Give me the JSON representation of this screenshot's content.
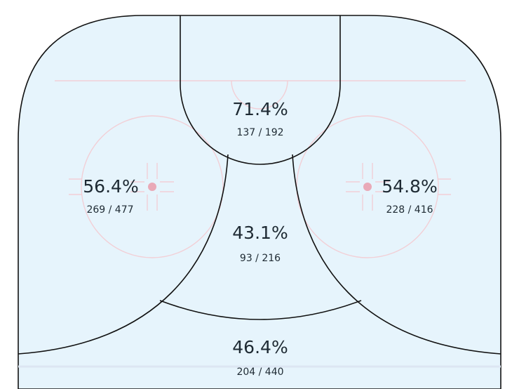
{
  "chart_data": {
    "type": "heatmap",
    "title": "",
    "zones": [
      {
        "id": "slot-top",
        "pct": "71.4%",
        "made": 137,
        "att": 192,
        "count_label": "137 / 192"
      },
      {
        "id": "left-circle",
        "pct": "56.4%",
        "made": 269,
        "att": 477,
        "count_label": "269 / 477"
      },
      {
        "id": "right-circle",
        "pct": "54.8%",
        "made": 228,
        "att": 416,
        "count_label": "228 / 416"
      },
      {
        "id": "center",
        "pct": "43.1%",
        "made": 93,
        "att": 216,
        "count_label": "93 / 216"
      },
      {
        "id": "point",
        "pct": "46.4%",
        "made": 204,
        "att": 440,
        "count_label": "204 / 440"
      }
    ]
  },
  "colors": {
    "ice": "#e6f4fc",
    "zone_line": "#111111",
    "rink_marking": "#f2cfd6",
    "faceoff_dot": "#e9aab8",
    "text": "#1e2a33"
  }
}
